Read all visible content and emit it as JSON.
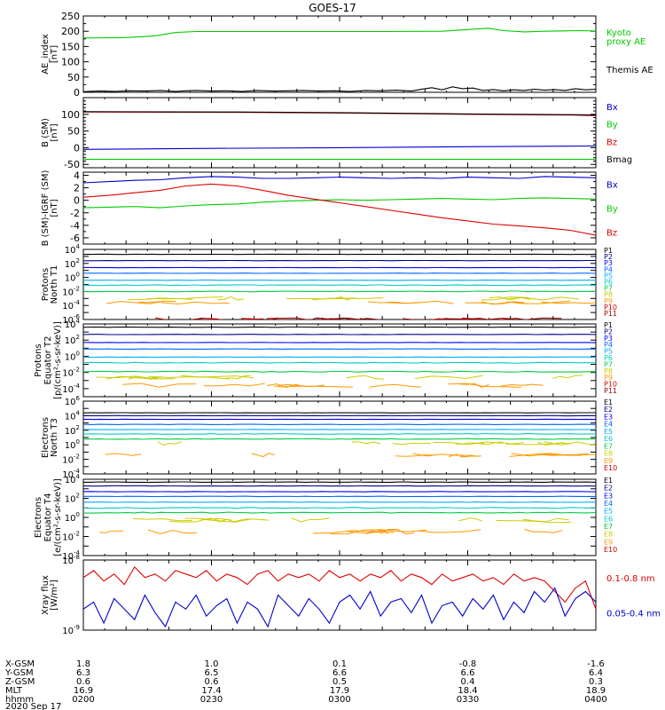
{
  "title": "GOES-17",
  "colors": {
    "black": "#000000",
    "blue": "#0000cc",
    "green": "#00cc00",
    "red": "#dd0000",
    "p_ch": [
      "#000000",
      "#000088",
      "#0000ff",
      "#0066ff",
      "#00aaff",
      "#00cccc",
      "#00cc44",
      "#cccc00",
      "#ff9900",
      "#cc0000",
      "#990000"
    ]
  },
  "chart_data": [
    {
      "type": "line",
      "ylabel": [
        "AE_index",
        "[nT]"
      ],
      "ylim": [
        0,
        250
      ],
      "yticks": [
        "0",
        "50",
        "100",
        "150",
        "200",
        "250"
      ],
      "minor_step": 25,
      "legend": [
        {
          "text": "Kyoto",
          "color": "#00cc00"
        },
        {
          "text": "proxy AE",
          "color": "#00cc00"
        },
        {
          "text": "Themis AE",
          "color": "#000000"
        }
      ],
      "series": [
        {
          "name": "Kyoto proxy AE",
          "color": "#00cc00",
          "x": [
            0,
            8,
            14,
            18,
            22,
            30,
            40,
            55,
            60,
            70,
            79,
            82,
            86,
            90,
            97,
            100
          ],
          "y": [
            178,
            179,
            185,
            196,
            199,
            199,
            199,
            199,
            199,
            200,
            210,
            202,
            198,
            200,
            202,
            201
          ]
        },
        {
          "name": "Themis AE",
          "color": "#000000",
          "x": [
            0,
            3,
            6,
            9,
            12,
            15,
            18,
            20,
            22,
            25,
            28,
            31,
            34,
            37,
            40,
            43,
            46,
            49,
            52,
            55,
            58,
            61,
            64,
            66,
            68,
            70,
            72,
            74,
            76,
            78,
            80,
            82,
            84,
            86,
            88,
            90,
            92,
            94,
            96,
            98,
            100
          ],
          "y": [
            2,
            4,
            3,
            5,
            4,
            6,
            3,
            5,
            6,
            4,
            5,
            3,
            6,
            4,
            5,
            6,
            4,
            5,
            3,
            6,
            5,
            7,
            4,
            10,
            15,
            8,
            18,
            12,
            14,
            6,
            9,
            5,
            8,
            6,
            10,
            7,
            9,
            6,
            12,
            8,
            10
          ]
        }
      ]
    },
    {
      "type": "line",
      "ylabel": [
        "B (SM)",
        "[nT]"
      ],
      "ylim": [
        -60,
        150
      ],
      "yticks": [
        "-50",
        "0",
        "50",
        "100"
      ],
      "minor_step": 10,
      "legend": [
        {
          "text": "Bx",
          "color": "#0000cc"
        },
        {
          "text": "By",
          "color": "#00cc00"
        },
        {
          "text": "Bz",
          "color": "#dd0000"
        },
        {
          "text": "Bmag",
          "color": "#000000"
        }
      ],
      "series": [
        {
          "name": "Bx",
          "color": "#0000cc",
          "x": [
            0,
            25,
            50,
            75,
            100
          ],
          "y": [
            -5,
            -2,
            0,
            3,
            5
          ]
        },
        {
          "name": "By",
          "color": "#00cc00",
          "x": [
            0,
            100
          ],
          "y": [
            -35,
            -35
          ]
        },
        {
          "name": "Bz",
          "color": "#dd0000",
          "x": [
            0,
            30,
            50,
            75,
            95,
            100
          ],
          "y": [
            107,
            106,
            104,
            100,
            98,
            96
          ]
        },
        {
          "name": "Bmag",
          "color": "#000000",
          "x": [
            0,
            30,
            50,
            75,
            95,
            100
          ],
          "y": [
            108,
            107,
            105,
            101,
            99,
            98
          ]
        }
      ]
    },
    {
      "type": "line",
      "ylabel": [
        "B (SM)-IGRF (SM)",
        "[nT]"
      ],
      "ylim": [
        -7,
        4.5
      ],
      "yticks": [
        "-6",
        "-4",
        "-2",
        "0",
        "2",
        "4"
      ],
      "minor_step": 1,
      "legend": [
        {
          "text": "Bx",
          "color": "#0000cc"
        },
        {
          "text": "By",
          "color": "#00cc00"
        },
        {
          "text": "Bz",
          "color": "#dd0000"
        }
      ],
      "series": [
        {
          "name": "Bx",
          "color": "#0000cc",
          "x": [
            0,
            5,
            10,
            15,
            20,
            25,
            30,
            35,
            40,
            45,
            50,
            55,
            60,
            65,
            70,
            75,
            80,
            85,
            90,
            95,
            100
          ],
          "y": [
            2.8,
            3.0,
            3.2,
            3.3,
            3.6,
            3.8,
            3.7,
            3.5,
            3.5,
            3.6,
            3.7,
            3.6,
            3.5,
            3.6,
            3.5,
            3.7,
            3.6,
            3.5,
            3.8,
            3.7,
            3.6
          ]
        },
        {
          "name": "By",
          "color": "#00cc00",
          "x": [
            0,
            5,
            10,
            15,
            20,
            25,
            30,
            35,
            40,
            45,
            50,
            55,
            60,
            65,
            70,
            75,
            80,
            85,
            90,
            95,
            100
          ],
          "y": [
            -1.2,
            -1.1,
            -1.0,
            -1.2,
            -0.9,
            -0.7,
            -0.6,
            -0.3,
            -0.1,
            0,
            0.1,
            0,
            0.1,
            0.2,
            0.3,
            0.2,
            0.1,
            0.3,
            0.4,
            0.3,
            0.2
          ]
        },
        {
          "name": "Bz",
          "color": "#dd0000",
          "x": [
            0,
            5,
            10,
            15,
            20,
            25,
            30,
            35,
            40,
            45,
            50,
            55,
            60,
            65,
            70,
            75,
            80,
            85,
            90,
            95,
            100
          ],
          "y": [
            0.5,
            0.8,
            1.2,
            1.6,
            2.3,
            2.6,
            2.3,
            1.6,
            0.8,
            0.2,
            -0.4,
            -1.0,
            -1.6,
            -2.2,
            -2.8,
            -3.3,
            -3.8,
            -4.1,
            -4.4,
            -4.8,
            -5.6
          ]
        }
      ]
    },
    {
      "type": "line",
      "log": true,
      "ylabel": [
        "Protons",
        "North T1"
      ],
      "ylim_exp": [
        -6,
        4
      ],
      "ytick_exps": [
        -6,
        -4,
        -2,
        0,
        2,
        4
      ],
      "legend_colors": "p_ch",
      "legend": [
        "P1",
        "P2",
        "P3",
        "P4",
        "P5",
        "P6",
        "P7",
        "P8",
        "P9",
        "P10",
        "P11"
      ],
      "levels": [
        3.3,
        2.4,
        1.4,
        0.6,
        -0.4,
        -1.1,
        -2.0,
        -3.0,
        -3.6,
        -6,
        -6
      ]
    },
    {
      "type": "line",
      "log": true,
      "ylabel": [
        "Protons",
        "Equator T2",
        "[p/(cm²-s-sr-keV)]"
      ],
      "ylim_exp": [
        -5,
        4
      ],
      "ytick_exps": [
        -4,
        -2,
        0,
        2,
        4
      ],
      "legend_colors": "p_ch",
      "legend": [
        "P1",
        "P2",
        "P3",
        "P4",
        "P5",
        "P6",
        "P7",
        "P8",
        "P9",
        "P10",
        "P11"
      ],
      "levels": [
        3.6,
        2.7,
        1.7,
        0.9,
        -0.1,
        -0.8,
        -1.9,
        -2.6,
        -3.6,
        -6,
        -6
      ]
    },
    {
      "type": "line",
      "log": true,
      "ylabel": [
        "Electrons",
        "North T3"
      ],
      "ylim_exp": [
        -4,
        6
      ],
      "ytick_exps": [
        -4,
        -2,
        0,
        2,
        4,
        6
      ],
      "legend_colors": "p_ch",
      "legend": [
        "E1",
        "E2",
        "E3",
        "E4",
        "E5",
        "E6",
        "E7",
        "E8",
        "E9",
        "E10"
      ],
      "levels": [
        4.4,
        4.0,
        3.5,
        2.8,
        2.1,
        1.5,
        0.8,
        0.2,
        -1.4,
        -8
      ]
    },
    {
      "type": "line",
      "log": true,
      "ylabel": [
        "Electrons",
        "Equator T4",
        "[e/(cm²-s-sr-keV)]"
      ],
      "ylim_exp": [
        -4,
        4
      ],
      "ytick_exps": [
        -4,
        -2,
        0,
        2,
        4
      ],
      "legend_colors": "p_ch",
      "legend": [
        "E1",
        "E2",
        "E3",
        "E4",
        "E5",
        "E6",
        "E7",
        "E8",
        "E9",
        "E10"
      ],
      "levels": [
        3.7,
        3.3,
        2.7,
        2.2,
        1.6,
        1.0,
        0.5,
        -0.3,
        -1.5,
        -8
      ]
    },
    {
      "type": "line",
      "log": true,
      "ylabel": [
        "Xray flux",
        "[W/m²]"
      ],
      "ylim_exp": [
        -9,
        -8
      ],
      "ytick_exps": [
        -9,
        -8
      ],
      "legend": [
        {
          "text": "0.1-0.8 nm",
          "color": "#dd0000"
        },
        {
          "text": "0.05-0.4 nm",
          "color": "#0000cc"
        }
      ],
      "series": [
        {
          "name": "0.1-0.8 nm",
          "color": "#dd0000",
          "x": [
            0,
            2,
            4,
            6,
            8,
            10,
            12,
            14,
            16,
            18,
            20,
            22,
            24,
            26,
            28,
            30,
            32,
            34,
            36,
            38,
            40,
            42,
            44,
            46,
            48,
            50,
            52,
            54,
            56,
            58,
            60,
            62,
            64,
            66,
            68,
            70,
            72,
            74,
            76,
            78,
            80,
            82,
            84,
            86,
            88,
            90,
            92,
            94,
            96,
            98,
            100
          ],
          "y": [
            -8.25,
            -8.15,
            -8.3,
            -8.2,
            -8.35,
            -8.1,
            -8.25,
            -8.2,
            -8.3,
            -8.15,
            -8.2,
            -8.25,
            -8.15,
            -8.3,
            -8.2,
            -8.25,
            -8.35,
            -8.2,
            -8.15,
            -8.3,
            -8.2,
            -8.25,
            -8.2,
            -8.3,
            -8.15,
            -8.25,
            -8.2,
            -8.3,
            -8.2,
            -8.25,
            -8.15,
            -8.3,
            -8.2,
            -8.25,
            -8.35,
            -8.2,
            -8.3,
            -8.25,
            -8.2,
            -8.3,
            -8.25,
            -8.35,
            -8.2,
            -8.3,
            -8.25,
            -8.3,
            -8.45,
            -8.6,
            -8.4,
            -8.3,
            -8.7
          ]
        },
        {
          "name": "0.05-0.4 nm",
          "color": "#0000cc",
          "x": [
            0,
            2,
            4,
            6,
            8,
            10,
            12,
            14,
            16,
            18,
            20,
            22,
            24,
            26,
            28,
            30,
            32,
            34,
            36,
            38,
            40,
            42,
            44,
            46,
            48,
            50,
            52,
            54,
            56,
            58,
            60,
            62,
            64,
            66,
            68,
            70,
            72,
            74,
            76,
            78,
            80,
            82,
            84,
            86,
            88,
            90,
            92,
            94,
            96,
            98,
            100
          ],
          "y": [
            -8.7,
            -8.6,
            -8.9,
            -8.55,
            -8.7,
            -8.85,
            -8.5,
            -8.75,
            -8.95,
            -8.6,
            -8.7,
            -8.5,
            -8.8,
            -8.65,
            -8.55,
            -8.9,
            -8.6,
            -8.7,
            -8.95,
            -8.5,
            -8.65,
            -8.8,
            -8.55,
            -8.7,
            -8.9,
            -8.6,
            -8.5,
            -8.7,
            -8.45,
            -8.8,
            -8.6,
            -8.55,
            -8.75,
            -8.5,
            -8.9,
            -8.65,
            -8.6,
            -8.8,
            -8.55,
            -8.7,
            -8.5,
            -8.85,
            -8.6,
            -8.75,
            -8.45,
            -8.6,
            -8.4,
            -8.8,
            -8.55,
            -8.45,
            -8.6
          ]
        }
      ]
    }
  ],
  "x_axis": {
    "rows": [
      {
        "label": "X-GSM",
        "values": [
          "1.8",
          "1.0",
          "0.1",
          "-0.8",
          "-1.6"
        ]
      },
      {
        "label": "Y-GSM",
        "values": [
          "6.3",
          "6.5",
          "6.6",
          "6.6",
          "6.4"
        ]
      },
      {
        "label": "Z-GSM",
        "values": [
          "0.6",
          "0.6",
          "0.5",
          "0.4",
          "0.3"
        ]
      },
      {
        "label": "MLT",
        "values": [
          "16.9",
          "17.4",
          "17.9",
          "18.4",
          "18.9"
        ]
      },
      {
        "label": "hhmm",
        "values": [
          "0200",
          "0230",
          "0300",
          "0330",
          "0400"
        ]
      }
    ],
    "date": "2020 Sep 17"
  }
}
